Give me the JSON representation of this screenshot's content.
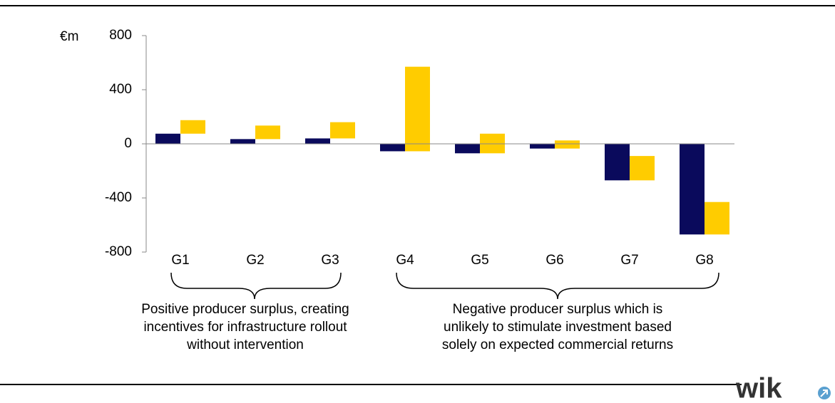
{
  "chart_data": {
    "type": "bar",
    "ylabel": "€m",
    "categories": [
      "G1",
      "G2",
      "G3",
      "G4",
      "G5",
      "G6",
      "G7",
      "G8"
    ],
    "series": [
      {
        "color": "#0a0a5c",
        "values": [
          75,
          35,
          40,
          -55,
          -70,
          -35,
          -270,
          -670
        ]
      },
      {
        "color": "#ffcc00",
        "values": [
          100,
          100,
          120,
          625,
          145,
          60,
          180,
          240
        ]
      }
    ],
    "ylim": [
      -800,
      800
    ],
    "yticks": [
      -800,
      -400,
      0,
      400,
      800
    ],
    "annotations": [
      [
        "Positive producer surplus, creating",
        "incentives for infrastructure rollout",
        "without intervention"
      ],
      [
        "Negative producer surplus which is",
        "unlikely to stimulate investment based",
        "solely on expected commercial returns"
      ]
    ],
    "logo": "wik"
  }
}
